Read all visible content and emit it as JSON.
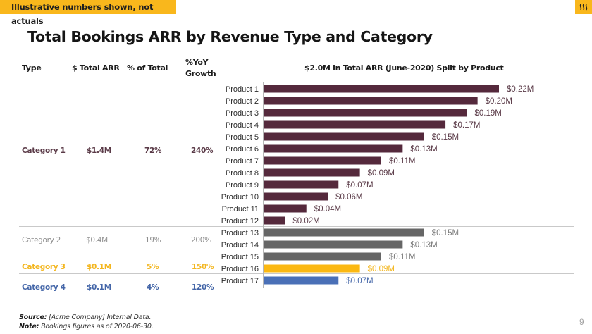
{
  "banner": {
    "text": "Illustrative numbers shown, not actuals"
  },
  "logo": {
    "icon": "brand-logo-icon",
    "color": "#f9b71c"
  },
  "title": "Total Bookings ARR by Revenue Type and Category",
  "table": {
    "headers": {
      "type": "Type",
      "total_arr": "$ Total ARR",
      "pct_total": "% of Total",
      "yoy_line1": "%YoY",
      "yoy_line2": "Growth"
    },
    "rows": [
      {
        "type": "Category 1",
        "total_arr": "$1.4M",
        "pct_total": "72%",
        "yoy": "240%",
        "color": "#5a3a47"
      },
      {
        "type": "Category 2",
        "total_arr": "$0.4M",
        "pct_total": "19%",
        "yoy": "200%",
        "color": "#8e8e8e"
      },
      {
        "type": "Category 3",
        "total_arr": "$0.1M",
        "pct_total": "5%",
        "yoy": "150%",
        "color": "#f3b61f"
      },
      {
        "type": "Category 4",
        "total_arr": "$0.1M",
        "pct_total": "4%",
        "yoy": "120%",
        "color": "#4466a8"
      }
    ]
  },
  "chart_data": {
    "type": "bar",
    "orientation": "horizontal",
    "title": "$2.0M in Total ARR (June-2020) Split by Product",
    "xlabel": "",
    "ylabel": "",
    "units": "$M",
    "xlim": [
      0,
      0.22
    ],
    "grid": false,
    "categories": [
      "Product 1",
      "Product 2",
      "Product 3",
      "Product 4",
      "Product 5",
      "Product 6",
      "Product 7",
      "Product 8",
      "Product 9",
      "Product 10",
      "Product 11",
      "Product 12",
      "Product 13",
      "Product 14",
      "Product 15",
      "Product 16",
      "Product 17"
    ],
    "values": [
      0.22,
      0.2,
      0.19,
      0.17,
      0.15,
      0.13,
      0.11,
      0.09,
      0.07,
      0.06,
      0.04,
      0.02,
      0.15,
      0.13,
      0.11,
      0.09,
      0.07
    ],
    "labels": [
      "$0.22M",
      "$0.20M",
      "$0.19M",
      "$0.17M",
      "$0.15M",
      "$0.13M",
      "$0.11M",
      "$0.09M",
      "$0.07M",
      "$0.06M",
      "$0.04M",
      "$0.02M",
      "$0.15M",
      "$0.13M",
      "$0.11M",
      "$0.09M",
      "$0.07M"
    ],
    "groups": [
      "Category 1",
      "Category 1",
      "Category 1",
      "Category 1",
      "Category 1",
      "Category 1",
      "Category 1",
      "Category 1",
      "Category 1",
      "Category 1",
      "Category 1",
      "Category 1",
      "Category 2",
      "Category 2",
      "Category 2",
      "Category 3",
      "Category 4"
    ],
    "group_colors": {
      "Category 1": {
        "bar": "#55293c",
        "label": "#5a3a47"
      },
      "Category 2": {
        "bar": "#666666",
        "label": "#7a7a7a"
      },
      "Category 3": {
        "bar": "#fbb812",
        "label": "#f3b61f"
      },
      "Category 4": {
        "bar": "#4a70b7",
        "label": "#4466a8"
      }
    }
  },
  "footer": {
    "source_label": "Source:",
    "source_text": " [Acme Company] Internal Data.",
    "note_label": "Note:",
    "note_text": " Bookings figures as of 2020-06-30."
  },
  "page_number": "9"
}
